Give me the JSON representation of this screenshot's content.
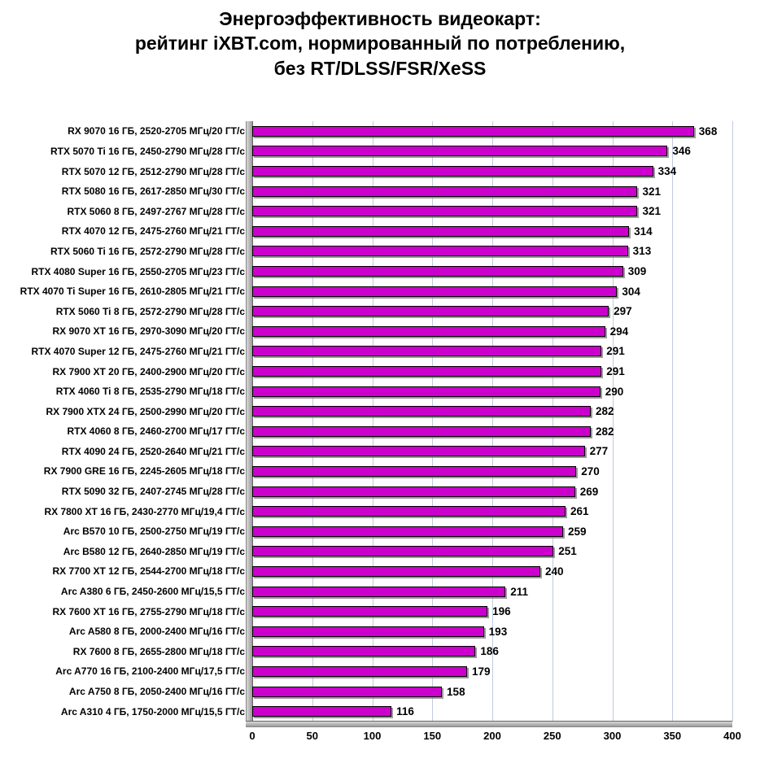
{
  "title": {
    "lines": [
      "Энергоэффективность видеокарт:",
      "рейтинг iXBT.com, нормированный по потреблению,",
      "без RT/DLSS/FSR/XeSS"
    ]
  },
  "chart_data": {
    "type": "bar",
    "orientation": "horizontal",
    "title": "Энергоэффективность видеокарт: рейтинг iXBT.com, нормированный по потреблению, без RT/DLSS/FSR/XeSS",
    "categories": [
      "RX 9070 16 ГБ, 2520-2705 МГц/20 ГТ/с",
      "RTX 5070 Ti 16 ГБ, 2450-2790 МГц/28 ГТ/с",
      "RTX 5070 12 ГБ, 2512-2790 МГц/28 ГТ/с",
      "RTX 5080 16 ГБ, 2617-2850 МГц/30 ГТ/с",
      "RTX 5060 8 ГБ, 2497-2767 МГц/28 ГТ/с",
      "RTX 4070 12 ГБ, 2475-2760 МГц/21 ГТ/с",
      "RTX 5060 Ti 16 ГБ, 2572-2790 МГц/28 ГТ/с",
      "RTX 4080 Super 16 ГБ, 2550-2705 МГц/23 ГТ/с",
      "RTX 4070 Ti Super 16 ГБ, 2610-2805 МГц/21 ГТ/с",
      "RTX 5060 Ti 8 ГБ, 2572-2790 МГц/28 ГТ/с",
      "RX 9070 XT 16 ГБ, 2970-3090 МГц/20 ГТ/с",
      "RTX 4070 Super 12 ГБ, 2475-2760 МГц/21 ГТ/с",
      "RX 7900 XT 20 ГБ, 2400-2900 МГц/20 ГТ/с",
      "RTX 4060 Ti 8 ГБ, 2535-2790 МГц/18 ГТ/с",
      "RX 7900 XTX 24 ГБ, 2500-2990 МГц/20 ГТ/с",
      "RTX 4060 8 ГБ, 2460-2700 МГц/17 ГТ/с",
      "RTX 4090 24 ГБ, 2520-2640 МГц/21 ГТ/с",
      "RX 7900 GRE 16 ГБ, 2245-2605 МГц/18 ГТ/с",
      "RTX 5090 32 ГБ, 2407-2745 МГц/28 ГТ/с",
      "RX 7800 XT 16 ГБ, 2430-2770 МГц/19,4 ГТ/с",
      "Arc B570 10 ГБ, 2500-2750 МГц/19 ГТ/с",
      "Arc B580 12 ГБ, 2640-2850 МГц/19 ГТ/с",
      "RX 7700 XT 12 ГБ, 2544-2700 МГц/18 ГТ/с",
      "Arc A380 6 ГБ, 2450-2600 МГц/15,5 ГТ/с",
      "RX 7600 XT 16 ГБ, 2755-2790 МГц/18 ГТ/с",
      "Arc A580 8 ГБ, 2000-2400 МГц/16 ГТ/с",
      "RX 7600 8 ГБ, 2655-2800 МГц/18 ГТ/с",
      "Arc A770 16 ГБ, 2100-2400 МГц/17,5 ГТ/с",
      "Arc A750 8 ГБ, 2050-2400 МГц/16 ГТ/с",
      "Arc A310 4 ГБ, 1750-2000 МГц/15,5 ГТ/с"
    ],
    "values": [
      368,
      346,
      334,
      321,
      321,
      314,
      313,
      309,
      304,
      297,
      294,
      291,
      291,
      290,
      282,
      282,
      277,
      270,
      269,
      261,
      259,
      251,
      240,
      211,
      196,
      193,
      186,
      179,
      158,
      116
    ],
    "xlim": [
      0,
      400
    ],
    "xticks": [
      0,
      50,
      100,
      150,
      200,
      250,
      300,
      350,
      400
    ],
    "grid": true,
    "legend": "none",
    "bar_color": "#CC00CC",
    "bar_border_color": "#000000",
    "gridline_color": "#bfcbdf"
  }
}
